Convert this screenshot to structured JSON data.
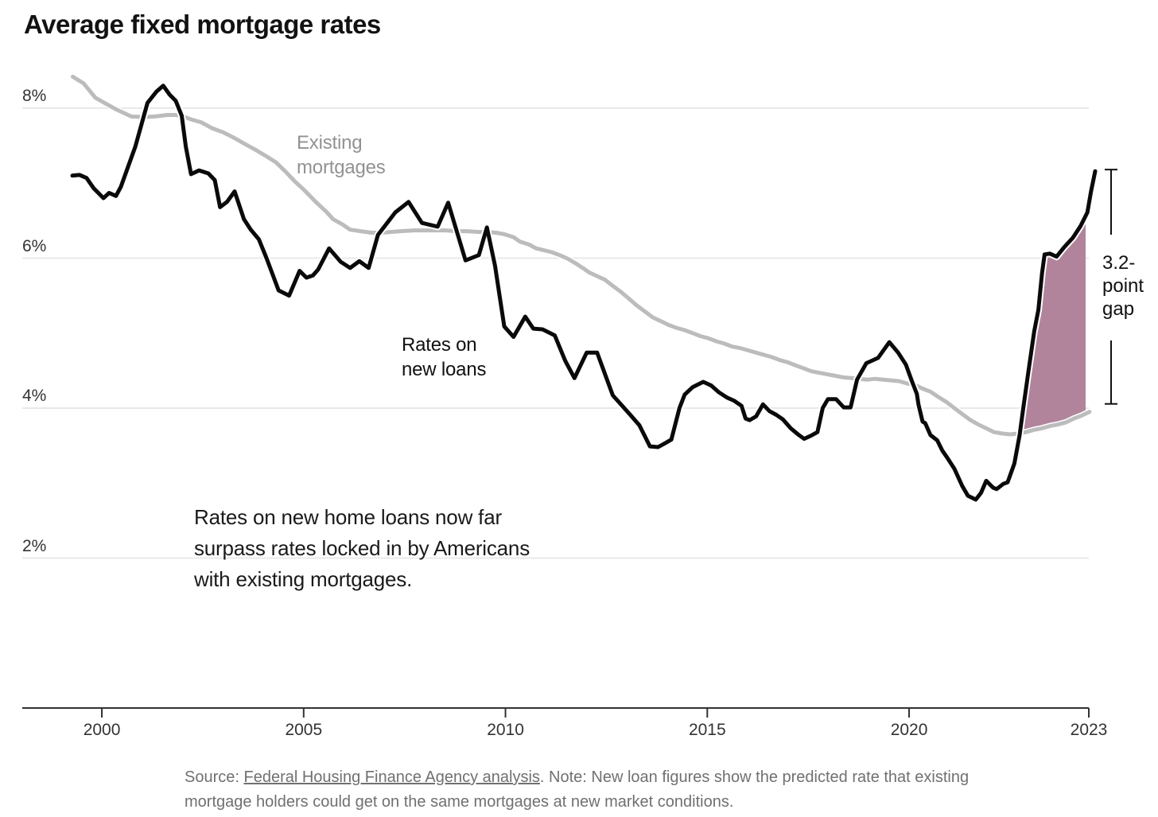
{
  "chart_data": {
    "type": "line",
    "title": "Average fixed mortgage rates",
    "annotation": "Rates on new home loans now far\nsurpass rates locked in by Americans\nwith existing mortgages.",
    "gap_annotation": {
      "text": "3.2-\npoint\ngap",
      "value": 3.2
    },
    "legend_labels": {
      "existing": "Existing\nmortgages",
      "new_loans": "Rates on\nnew loans"
    },
    "colors": {
      "new_loans_line": "#0a0a0a",
      "existing_line": "#bcbcbc",
      "gap_fill": "#b1849c",
      "gridline": "#e9e9e9",
      "axis": "#333333",
      "existing_label": "#929292"
    },
    "y_axis": {
      "ticks": [
        {
          "value": 8,
          "label": "8%"
        },
        {
          "value": 6,
          "label": "6%"
        },
        {
          "value": 4,
          "label": "4%"
        },
        {
          "value": 2,
          "label": "2%"
        }
      ],
      "grid": true
    },
    "x_axis": {
      "ticks": [
        {
          "year": 2000,
          "label": "2000"
        },
        {
          "year": 2005,
          "label": "2005"
        },
        {
          "year": 2010,
          "label": "2010"
        },
        {
          "year": 2015,
          "label": "2015"
        },
        {
          "year": 2020,
          "label": "2020"
        },
        {
          "year": 2023,
          "label": "2023",
          "at_end": true
        }
      ]
    },
    "series": [
      {
        "name": "Rates on new loans",
        "data": [
          [
            1999.27,
            7.1
          ],
          [
            1999.45,
            7.11
          ],
          [
            1999.62,
            7.07
          ],
          [
            1999.8,
            6.93
          ],
          [
            2000.04,
            6.8
          ],
          [
            2000.18,
            6.87
          ],
          [
            2000.35,
            6.83
          ],
          [
            2000.47,
            6.95
          ],
          [
            2000.83,
            7.49
          ],
          [
            2001.13,
            8.07
          ],
          [
            2001.35,
            8.22
          ],
          [
            2001.52,
            8.3
          ],
          [
            2001.68,
            8.18
          ],
          [
            2001.83,
            8.1
          ],
          [
            2001.98,
            7.9
          ],
          [
            2002.08,
            7.49
          ],
          [
            2002.21,
            7.12
          ],
          [
            2002.41,
            7.17
          ],
          [
            2002.64,
            7.13
          ],
          [
            2002.8,
            7.04
          ],
          [
            2002.93,
            6.68
          ],
          [
            2003.1,
            6.75
          ],
          [
            2003.29,
            6.89
          ],
          [
            2003.52,
            6.52
          ],
          [
            2003.69,
            6.38
          ],
          [
            2003.89,
            6.25
          ],
          [
            2004.08,
            6.0
          ],
          [
            2004.38,
            5.57
          ],
          [
            2004.64,
            5.5
          ],
          [
            2004.9,
            5.83
          ],
          [
            2005.07,
            5.74
          ],
          [
            2005.23,
            5.77
          ],
          [
            2005.36,
            5.85
          ],
          [
            2005.63,
            6.13
          ],
          [
            2005.92,
            5.95
          ],
          [
            2006.15,
            5.87
          ],
          [
            2006.38,
            5.96
          ],
          [
            2006.61,
            5.87
          ],
          [
            2006.84,
            6.31
          ],
          [
            2007.27,
            6.61
          ],
          [
            2007.6,
            6.75
          ],
          [
            2007.93,
            6.47
          ],
          [
            2008.32,
            6.42
          ],
          [
            2008.58,
            6.74
          ],
          [
            2009.01,
            5.97
          ],
          [
            2009.34,
            6.04
          ],
          [
            2009.54,
            6.41
          ],
          [
            2009.74,
            5.9
          ],
          [
            2009.97,
            5.09
          ],
          [
            2010.2,
            4.95
          ],
          [
            2010.49,
            5.22
          ],
          [
            2010.69,
            5.06
          ],
          [
            2010.92,
            5.05
          ],
          [
            2011.22,
            4.97
          ],
          [
            2011.48,
            4.63
          ],
          [
            2011.71,
            4.4
          ],
          [
            2012.01,
            4.74
          ],
          [
            2012.27,
            4.74
          ],
          [
            2012.66,
            4.17
          ],
          [
            2012.86,
            4.05
          ],
          [
            2013.06,
            3.93
          ],
          [
            2013.32,
            3.77
          ],
          [
            2013.58,
            3.49
          ],
          [
            2013.78,
            3.48
          ],
          [
            2013.98,
            3.54
          ],
          [
            2014.11,
            3.58
          ],
          [
            2014.31,
            4.0
          ],
          [
            2014.44,
            4.18
          ],
          [
            2014.64,
            4.28
          ],
          [
            2014.9,
            4.35
          ],
          [
            2015.1,
            4.3
          ],
          [
            2015.29,
            4.21
          ],
          [
            2015.49,
            4.14
          ],
          [
            2015.66,
            4.1
          ],
          [
            2015.85,
            4.03
          ],
          [
            2015.95,
            3.86
          ],
          [
            2016.05,
            3.84
          ],
          [
            2016.21,
            3.89
          ],
          [
            2016.38,
            4.05
          ],
          [
            2016.54,
            3.96
          ],
          [
            2016.71,
            3.91
          ],
          [
            2016.87,
            3.85
          ],
          [
            2017.07,
            3.73
          ],
          [
            2017.27,
            3.64
          ],
          [
            2017.4,
            3.59
          ],
          [
            2017.56,
            3.63
          ],
          [
            2017.73,
            3.68
          ],
          [
            2017.86,
            4.0
          ],
          [
            2017.99,
            4.12
          ],
          [
            2018.19,
            4.12
          ],
          [
            2018.38,
            4.01
          ],
          [
            2018.55,
            4.01
          ],
          [
            2018.71,
            4.38
          ],
          [
            2018.94,
            4.6
          ],
          [
            2019.07,
            4.63
          ],
          [
            2019.23,
            4.67
          ],
          [
            2019.51,
            4.88
          ],
          [
            2019.73,
            4.74
          ],
          [
            2019.92,
            4.58
          ],
          [
            2020.06,
            4.35
          ],
          [
            2020.15,
            4.19
          ],
          [
            2020.18,
            4.05
          ],
          [
            2020.26,
            3.82
          ],
          [
            2020.31,
            3.8
          ],
          [
            2020.41,
            3.64
          ],
          [
            2020.54,
            3.57
          ],
          [
            2020.64,
            3.43
          ],
          [
            2020.74,
            3.33
          ],
          [
            2020.87,
            3.19
          ],
          [
            2021.02,
            2.96
          ],
          [
            2021.13,
            2.83
          ],
          [
            2021.28,
            2.78
          ],
          [
            2021.38,
            2.87
          ],
          [
            2021.48,
            3.03
          ],
          [
            2021.61,
            2.94
          ],
          [
            2021.68,
            2.92
          ],
          [
            2021.81,
            2.99
          ],
          [
            2021.89,
            3.01
          ],
          [
            2022.02,
            3.26
          ],
          [
            2022.12,
            3.64
          ],
          [
            2022.19,
            4.0
          ],
          [
            2022.29,
            4.49
          ],
          [
            2022.4,
            5.02
          ],
          [
            2022.48,
            5.31
          ],
          [
            2022.55,
            5.8
          ],
          [
            2022.6,
            6.05
          ],
          [
            2022.7,
            6.06
          ],
          [
            2022.83,
            6.02
          ],
          [
            2022.98,
            6.15
          ],
          [
            2023.14,
            6.27
          ],
          [
            2023.29,
            6.43
          ],
          [
            2023.42,
            6.61
          ],
          [
            2023.49,
            6.89
          ],
          [
            2023.57,
            7.16
          ]
        ]
      },
      {
        "name": "Existing mortgages",
        "data": [
          [
            1999.28,
            8.42
          ],
          [
            1999.55,
            8.33
          ],
          [
            1999.84,
            8.14
          ],
          [
            2000.1,
            8.06
          ],
          [
            2000.37,
            7.98
          ],
          [
            2000.73,
            7.89
          ],
          [
            2001.03,
            7.88
          ],
          [
            2001.32,
            7.89
          ],
          [
            2001.62,
            7.91
          ],
          [
            2001.81,
            7.91
          ],
          [
            2001.97,
            7.9
          ],
          [
            2002.21,
            7.85
          ],
          [
            2002.47,
            7.81
          ],
          [
            2002.74,
            7.73
          ],
          [
            2003.0,
            7.68
          ],
          [
            2003.26,
            7.61
          ],
          [
            2003.52,
            7.53
          ],
          [
            2003.79,
            7.45
          ],
          [
            2004.04,
            7.37
          ],
          [
            2004.31,
            7.28
          ],
          [
            2004.54,
            7.16
          ],
          [
            2004.77,
            7.03
          ],
          [
            2005.03,
            6.9
          ],
          [
            2005.3,
            6.75
          ],
          [
            2005.56,
            6.62
          ],
          [
            2005.73,
            6.52
          ],
          [
            2005.96,
            6.45
          ],
          [
            2006.15,
            6.38
          ],
          [
            2006.41,
            6.36
          ],
          [
            2006.67,
            6.34
          ],
          [
            2006.94,
            6.34
          ],
          [
            2007.4,
            6.36
          ],
          [
            2007.73,
            6.37
          ],
          [
            2007.99,
            6.37
          ],
          [
            2008.24,
            6.37
          ],
          [
            2008.52,
            6.37
          ],
          [
            2008.78,
            6.36
          ],
          [
            2009.05,
            6.36
          ],
          [
            2009.31,
            6.35
          ],
          [
            2009.51,
            6.35
          ],
          [
            2009.76,
            6.34
          ],
          [
            2009.96,
            6.32
          ],
          [
            2010.2,
            6.28
          ],
          [
            2010.36,
            6.22
          ],
          [
            2010.59,
            6.18
          ],
          [
            2010.76,
            6.13
          ],
          [
            2010.99,
            6.1
          ],
          [
            2011.15,
            6.08
          ],
          [
            2011.34,
            6.04
          ],
          [
            2011.55,
            5.99
          ],
          [
            2011.74,
            5.93
          ],
          [
            2011.94,
            5.86
          ],
          [
            2012.07,
            5.81
          ],
          [
            2012.27,
            5.76
          ],
          [
            2012.47,
            5.71
          ],
          [
            2012.66,
            5.63
          ],
          [
            2012.86,
            5.55
          ],
          [
            2013.06,
            5.46
          ],
          [
            2013.25,
            5.37
          ],
          [
            2013.45,
            5.29
          ],
          [
            2013.65,
            5.21
          ],
          [
            2013.85,
            5.16
          ],
          [
            2014.04,
            5.11
          ],
          [
            2014.24,
            5.07
          ],
          [
            2014.44,
            5.04
          ],
          [
            2014.64,
            5.0
          ],
          [
            2014.83,
            4.96
          ],
          [
            2015.03,
            4.93
          ],
          [
            2015.23,
            4.89
          ],
          [
            2015.42,
            4.86
          ],
          [
            2015.62,
            4.82
          ],
          [
            2015.82,
            4.8
          ],
          [
            2016.01,
            4.77
          ],
          [
            2016.21,
            4.74
          ],
          [
            2016.41,
            4.71
          ],
          [
            2016.6,
            4.68
          ],
          [
            2016.8,
            4.64
          ],
          [
            2017.0,
            4.61
          ],
          [
            2017.19,
            4.57
          ],
          [
            2017.39,
            4.53
          ],
          [
            2017.59,
            4.49
          ],
          [
            2017.78,
            4.47
          ],
          [
            2017.98,
            4.45
          ],
          [
            2018.18,
            4.43
          ],
          [
            2018.38,
            4.41
          ],
          [
            2018.57,
            4.4
          ],
          [
            2018.77,
            4.39
          ],
          [
            2018.97,
            4.38
          ],
          [
            2019.16,
            4.39
          ],
          [
            2019.36,
            4.38
          ],
          [
            2019.55,
            4.37
          ],
          [
            2019.75,
            4.36
          ],
          [
            2019.94,
            4.33
          ],
          [
            2020.11,
            4.31
          ],
          [
            2020.26,
            4.26
          ],
          [
            2020.41,
            4.22
          ],
          [
            2020.56,
            4.15
          ],
          [
            2020.72,
            4.08
          ],
          [
            2020.87,
            4.0
          ],
          [
            2021.02,
            3.92
          ],
          [
            2021.18,
            3.84
          ],
          [
            2021.33,
            3.78
          ],
          [
            2021.48,
            3.73
          ],
          [
            2021.63,
            3.68
          ],
          [
            2021.79,
            3.66
          ],
          [
            2021.94,
            3.65
          ],
          [
            2022.09,
            3.66
          ],
          [
            2022.24,
            3.68
          ],
          [
            2022.4,
            3.71
          ],
          [
            2022.55,
            3.73
          ],
          [
            2022.7,
            3.76
          ],
          [
            2022.85,
            3.78
          ],
          [
            2023.01,
            3.81
          ],
          [
            2023.16,
            3.86
          ],
          [
            2023.31,
            3.9
          ],
          [
            2023.46,
            3.95
          ]
        ]
      }
    ],
    "source": {
      "prefix": "Source: ",
      "link": "Federal Housing Finance Agency analysis",
      "note": ". Note: New loan figures show the predicted rate that existing mortgage holders could get on the same mortgages at new market conditions."
    }
  }
}
